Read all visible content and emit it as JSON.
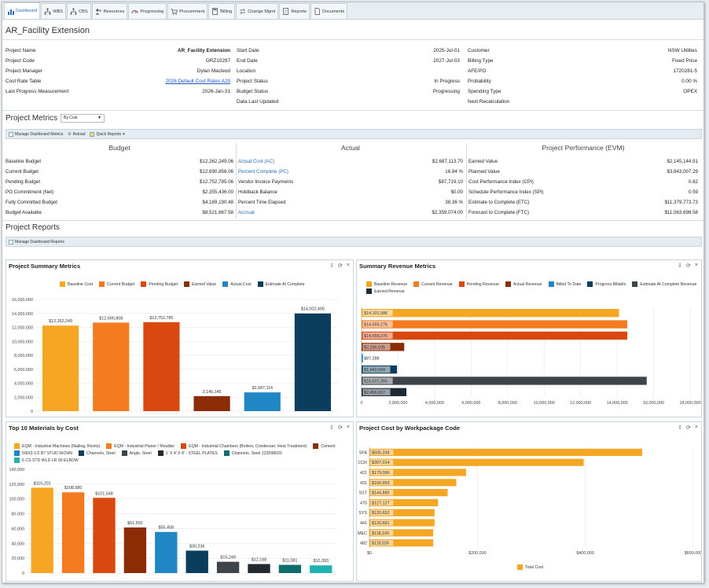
{
  "tabs": [
    {
      "label": "Dashboard",
      "icon": "bar-chart-icon",
      "active": true
    },
    {
      "label": "WBS",
      "icon": "hierarchy-icon"
    },
    {
      "label": "CBS",
      "icon": "hierarchy-icon"
    },
    {
      "label": "Resources",
      "icon": "people-icon"
    },
    {
      "label": "Progressing",
      "icon": "gauge-icon"
    },
    {
      "label": "Procurement",
      "icon": "cart-icon"
    },
    {
      "label": "Billing",
      "icon": "calculator-icon"
    },
    {
      "label": "Change Mgmt",
      "icon": "change-icon"
    },
    {
      "label": "Reports",
      "icon": "report-icon"
    },
    {
      "label": "Documents",
      "icon": "document-icon"
    }
  ],
  "project": {
    "title": "AR_Facility Extension"
  },
  "info": {
    "col1": [
      {
        "label": "Project Name",
        "value": "AR_Facility Extension",
        "bold": true
      },
      {
        "label": "Project Code",
        "value": "GRZ10297"
      },
      {
        "label": "Project Manager",
        "value": "Dylan Macleod"
      },
      {
        "label": "Cost Rate Table",
        "value": "2026 Default Cost Rates A29",
        "link": true
      },
      {
        "label": "Last Progress Measurement",
        "value": "2026-Jan-31"
      }
    ],
    "col2": [
      {
        "label": "Start Date",
        "value": "2025-Jul-01"
      },
      {
        "label": "End Date",
        "value": "2027-Jul-03"
      },
      {
        "label": "Location",
        "value": ""
      },
      {
        "label": "Project Status",
        "value": "In Progress"
      },
      {
        "label": "Budget Status",
        "value": "Progressing"
      },
      {
        "label": "Data Last Updated",
        "value": ""
      }
    ],
    "col3": [
      {
        "label": "Customer",
        "value": "NSW Utilities"
      },
      {
        "label": "Billing Type",
        "value": "Fixed Price"
      },
      {
        "label": "AFE/PO",
        "value": "1720281-5"
      },
      {
        "label": "Probability",
        "value": "0.00 %"
      },
      {
        "label": "Spending Type",
        "value": "OPEX"
      },
      {
        "label": "Next Recalculation",
        "value": ""
      }
    ]
  },
  "metrics": {
    "section_title": "Project Metrics",
    "select_value": "By Cost",
    "toolbar": {
      "manage": "Manage Dashboard Metrics",
      "reload": "Reload",
      "quick": "Quick Reports"
    },
    "budget": {
      "title": "Budget",
      "rows": [
        {
          "label": "Baseline Budget",
          "value": "$12,262,249.06"
        },
        {
          "label": "Current Budget",
          "value": "$12,690,858.06"
        },
        {
          "label": "Pending Budget",
          "value": "$12,752,785.06"
        },
        {
          "label": "PO Commitment (Net)",
          "value": "$2,355,436.00"
        },
        {
          "label": "Fully Committed Budget",
          "value": "$4,169,190.48"
        },
        {
          "label": "Budget Available",
          "value": "$8,521,667.58"
        }
      ]
    },
    "actual": {
      "title": "Actual",
      "rows": [
        {
          "label": "Actual Cost (AC)",
          "value": "$2,687,113.70",
          "link": true
        },
        {
          "label": "Percent Complete (PC)",
          "value": "16.94 %",
          "link": true
        },
        {
          "label": "Vendor Invoice Payments",
          "value": "$87,719.10"
        },
        {
          "label": "Holdback Balance",
          "value": "$0.00"
        },
        {
          "label": "Percent Time Elapsed",
          "value": "38.36 %"
        },
        {
          "label": "Accrual",
          "value": "$2,359,074.00",
          "link": true
        }
      ]
    },
    "evm": {
      "title": "Project Performance (EVM)",
      "rows": [
        {
          "label": "Earned Value",
          "value": "$2,145,144.91"
        },
        {
          "label": "Planned Value",
          "value": "$3,643,007.29"
        },
        {
          "label": "Cost Performance Index (CPI)",
          "value": "0.82"
        },
        {
          "label": "Schedule Performance Index (SPI)",
          "value": "0.59"
        },
        {
          "label": "Estimate to Complete (ETC)",
          "value": "$11,379,773.73"
        },
        {
          "label": "Forecast to Complete (FTC)",
          "value": "$11,063,698.58"
        }
      ]
    }
  },
  "reports": {
    "section_title": "Project Reports",
    "toolbar": {
      "manage": "Manage Dashboard Reports"
    }
  },
  "panel_icons": {
    "export": "⇩",
    "refresh": "⟳",
    "close": "×"
  },
  "chart_data": [
    {
      "title": "Project Summary Metrics",
      "type": "bar",
      "categories": [
        "Baseline Cost",
        "Current Budget",
        "Pending Budget",
        "Earned Value",
        "Actual Cost",
        "Estimate At Complete"
      ],
      "values": [
        12262249,
        12690858,
        12752785,
        2145145,
        2687114,
        14002405
      ],
      "labels": [
        "$12,262,249",
        "$12,690,858",
        "$12,752,785",
        "2,145,145",
        "$2,687,114",
        "$14,002,405"
      ],
      "colors": [
        "#f5a623",
        "#f47b20",
        "#d9480f",
        "#8b2c06",
        "#2087c4",
        "#0b3d5c"
      ],
      "ylim": [
        0,
        16000000
      ],
      "yticks": [
        "0",
        "2,000,000",
        "4,000,000",
        "6,000,000",
        "8,000,000",
        "10,000,000",
        "12,000,000",
        "14,000,000",
        "16,000,000"
      ],
      "legend": "top"
    },
    {
      "title": "Summary Revenue Metrics",
      "type": "bar-horizontal",
      "categories": [
        "Baseline Revenue",
        "Current Revenue",
        "Pending Revenue",
        "Actual Revenue",
        "Billed To Date",
        "Progress Billable",
        "Estimate At Complete Revenue",
        "Earned Revenue"
      ],
      "values": [
        14101586,
        14559276,
        14559276,
        2336635,
        87288,
        1942049,
        15621265,
        2456917
      ],
      "labels": [
        "$14,101,586",
        "$14,559,276",
        "$14,559,276",
        "$2,336,635",
        "$87,288",
        "$1,942,049",
        "$15,621,265",
        "$2,456,917"
      ],
      "colors": [
        "#f5a623",
        "#f47b20",
        "#d9480f",
        "#8b2c06",
        "#2087c4",
        "#0b3d5c",
        "#3d454b",
        "#1e2a36"
      ],
      "xlim": [
        0,
        18000000
      ],
      "xticks": [
        "0",
        "2,000,000",
        "4,000,000",
        "6,000,000",
        "8,000,000",
        "10,000,000",
        "12,000,000",
        "14,000,000",
        "16,000,000",
        "18,000,000"
      ],
      "legend": "top"
    },
    {
      "title": "Top 10 Materials by Cost",
      "type": "bar",
      "categories": [
        "EQM - Industrial Machines (Nailing, Rivets)",
        "EQM - Industrial Planer / Moulder",
        "EQM - Industrial Chambers (Boilers, Condenser, Heat Treatment)",
        "Cement",
        "5/8X3-1/2 B7 STUD W/2HN",
        "Channels, Steel",
        "Angle, Steel",
        "1' X 4' X 8' - STEEL PLATES",
        "Channels, Steel 223098020",
        "6 CS STD WLD LR 90 ELBOW"
      ],
      "values": [
        115201,
        108980,
        101548,
        61502,
        55458,
        30236,
        15249,
        12168,
        11081,
        10393
      ],
      "labels": [
        "$115,201",
        "$108,980",
        "$101,548",
        "$61,502",
        "$55,458",
        "$30,236",
        "$15,249",
        "$12,168",
        "$11,081",
        "$10,393"
      ],
      "colors": [
        "#f5a623",
        "#f47b20",
        "#d9480f",
        "#8b2c06",
        "#2087c4",
        "#0b3d5c",
        "#3d454b",
        "#222a30",
        "#0f6e6a",
        "#1fb2b0"
      ],
      "ylim": [
        0,
        140000
      ],
      "yticks": [
        "0",
        "20,000",
        "40,000",
        "60,000",
        "80,000",
        "100,000",
        "120,000",
        "140,000"
      ],
      "legend": "top"
    },
    {
      "title": "Project Cost by Workpackage Code",
      "type": "bar-horizontal",
      "categories": [
        "SFA",
        "CCR",
        "421",
        "431",
        "SST",
        "475",
        "SYS",
        "441",
        "MEC",
        "482"
      ],
      "values": [
        505339,
        397014,
        179096,
        160953,
        144885,
        127127,
        120652,
        120681,
        118100,
        118026
      ],
      "labels": [
        "$505,339",
        "$397,014",
        "$179,096",
        "$160,953",
        "$144,885",
        "$127,127",
        "$120,652",
        "$120,681",
        "$118,100",
        "$118,026"
      ],
      "series_name": "Total Cost",
      "color": "#f5a623",
      "xlim": [
        0,
        600000
      ],
      "xticks": [
        "$0",
        "$200,000",
        "$400,000",
        "$600,000"
      ],
      "legend": "bottom"
    }
  ]
}
